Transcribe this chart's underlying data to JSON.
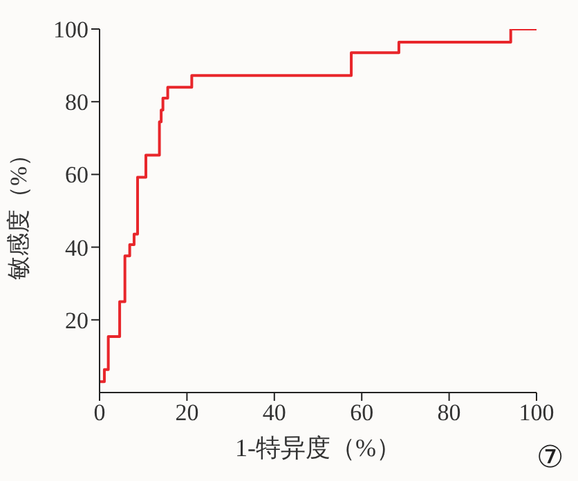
{
  "chart_data": {
    "type": "step",
    "xlabel": "1-特异度（%）",
    "ylabel": "敏感度（%）",
    "x": [
      0,
      1.1,
      2,
      4.6,
      5.8,
      6.9,
      7.9,
      8.7,
      10.6,
      13.7,
      14.1,
      14.5,
      15.6,
      21.1,
      57.6,
      68.5,
      94.1,
      100
    ],
    "series": [
      {
        "color": "#e8262b",
        "values": [
          3,
          6.3,
          15.4,
          25,
          37.6,
          40.7,
          43.6,
          59.2,
          65.3,
          74.5,
          77.7,
          81,
          84,
          87.2,
          93.5,
          96.4,
          100,
          100
        ]
      }
    ],
    "xlim": [
      0,
      100
    ],
    "ylim": [
      0,
      100
    ],
    "xticks": [
      0,
      20,
      40,
      60,
      80,
      100
    ],
    "yticks": [
      20,
      40,
      60,
      80,
      100
    ],
    "grid": false,
    "legend": false,
    "marker": "none",
    "line_style": "solid",
    "annotations": [
      "⑦"
    ]
  }
}
